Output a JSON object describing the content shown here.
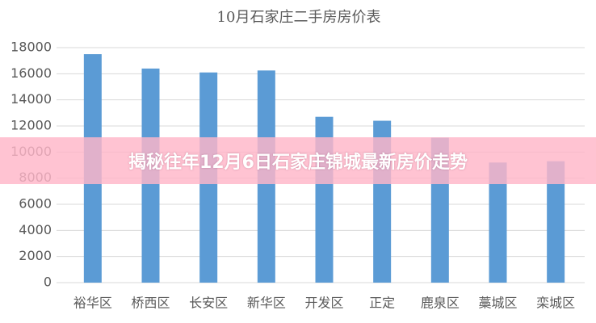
{
  "chart_data": {
    "type": "bar",
    "title": "10月石家庄二手房房价表",
    "categories": [
      "裕华区",
      "桥西区",
      "长安区",
      "新华区",
      "开发区",
      "正定",
      "鹿泉区",
      "藁城区",
      "栾城区"
    ],
    "values": [
      17500,
      16400,
      16100,
      16250,
      12700,
      12400,
      11100,
      9200,
      9300
    ],
    "color": "#5b9bd5",
    "ylim": [
      0,
      18000
    ],
    "yticks": [
      0,
      2000,
      4000,
      6000,
      8000,
      10000,
      12000,
      14000,
      16000,
      18000
    ],
    "grid": true
  },
  "overlay_title": "揭秘往年12月6日石家庄锦城最新房价走势"
}
